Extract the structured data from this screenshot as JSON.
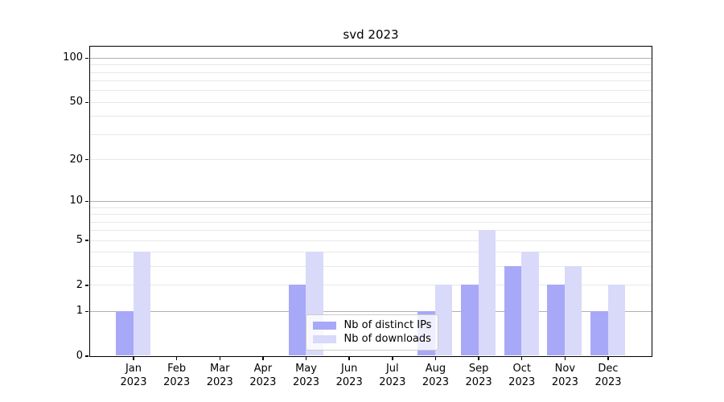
{
  "chart_data": {
    "type": "bar",
    "title": "svd 2023",
    "x_year_label": "2023",
    "categories": [
      "Jan",
      "Feb",
      "Mar",
      "Apr",
      "May",
      "Jun",
      "Jul",
      "Aug",
      "Sep",
      "Oct",
      "Nov",
      "Dec"
    ],
    "series": [
      {
        "name": "Nb of distinct IPs",
        "color": "#a8a8f8",
        "values": [
          1,
          0,
          0,
          0,
          2,
          0,
          0,
          1,
          2,
          3,
          2,
          1
        ]
      },
      {
        "name": "Nb of downloads",
        "color": "#d9d9fa",
        "values": [
          4,
          0,
          0,
          0,
          4,
          0,
          0,
          2,
          6,
          4,
          3,
          2
        ]
      }
    ],
    "yscale": "log1p",
    "ylim": [
      0,
      120
    ],
    "yticks": [
      0,
      1,
      2,
      5,
      10,
      20,
      50,
      100
    ],
    "grid": {
      "major": [
        1,
        10,
        100
      ],
      "minor": [
        2,
        3,
        4,
        5,
        6,
        7,
        8,
        9,
        20,
        30,
        40,
        50,
        60,
        70,
        80,
        90
      ],
      "major_color": "#b0b0b0",
      "minor_color": "#e8e8e8"
    },
    "legend_position": "lower center",
    "axis_color": "#000000"
  }
}
